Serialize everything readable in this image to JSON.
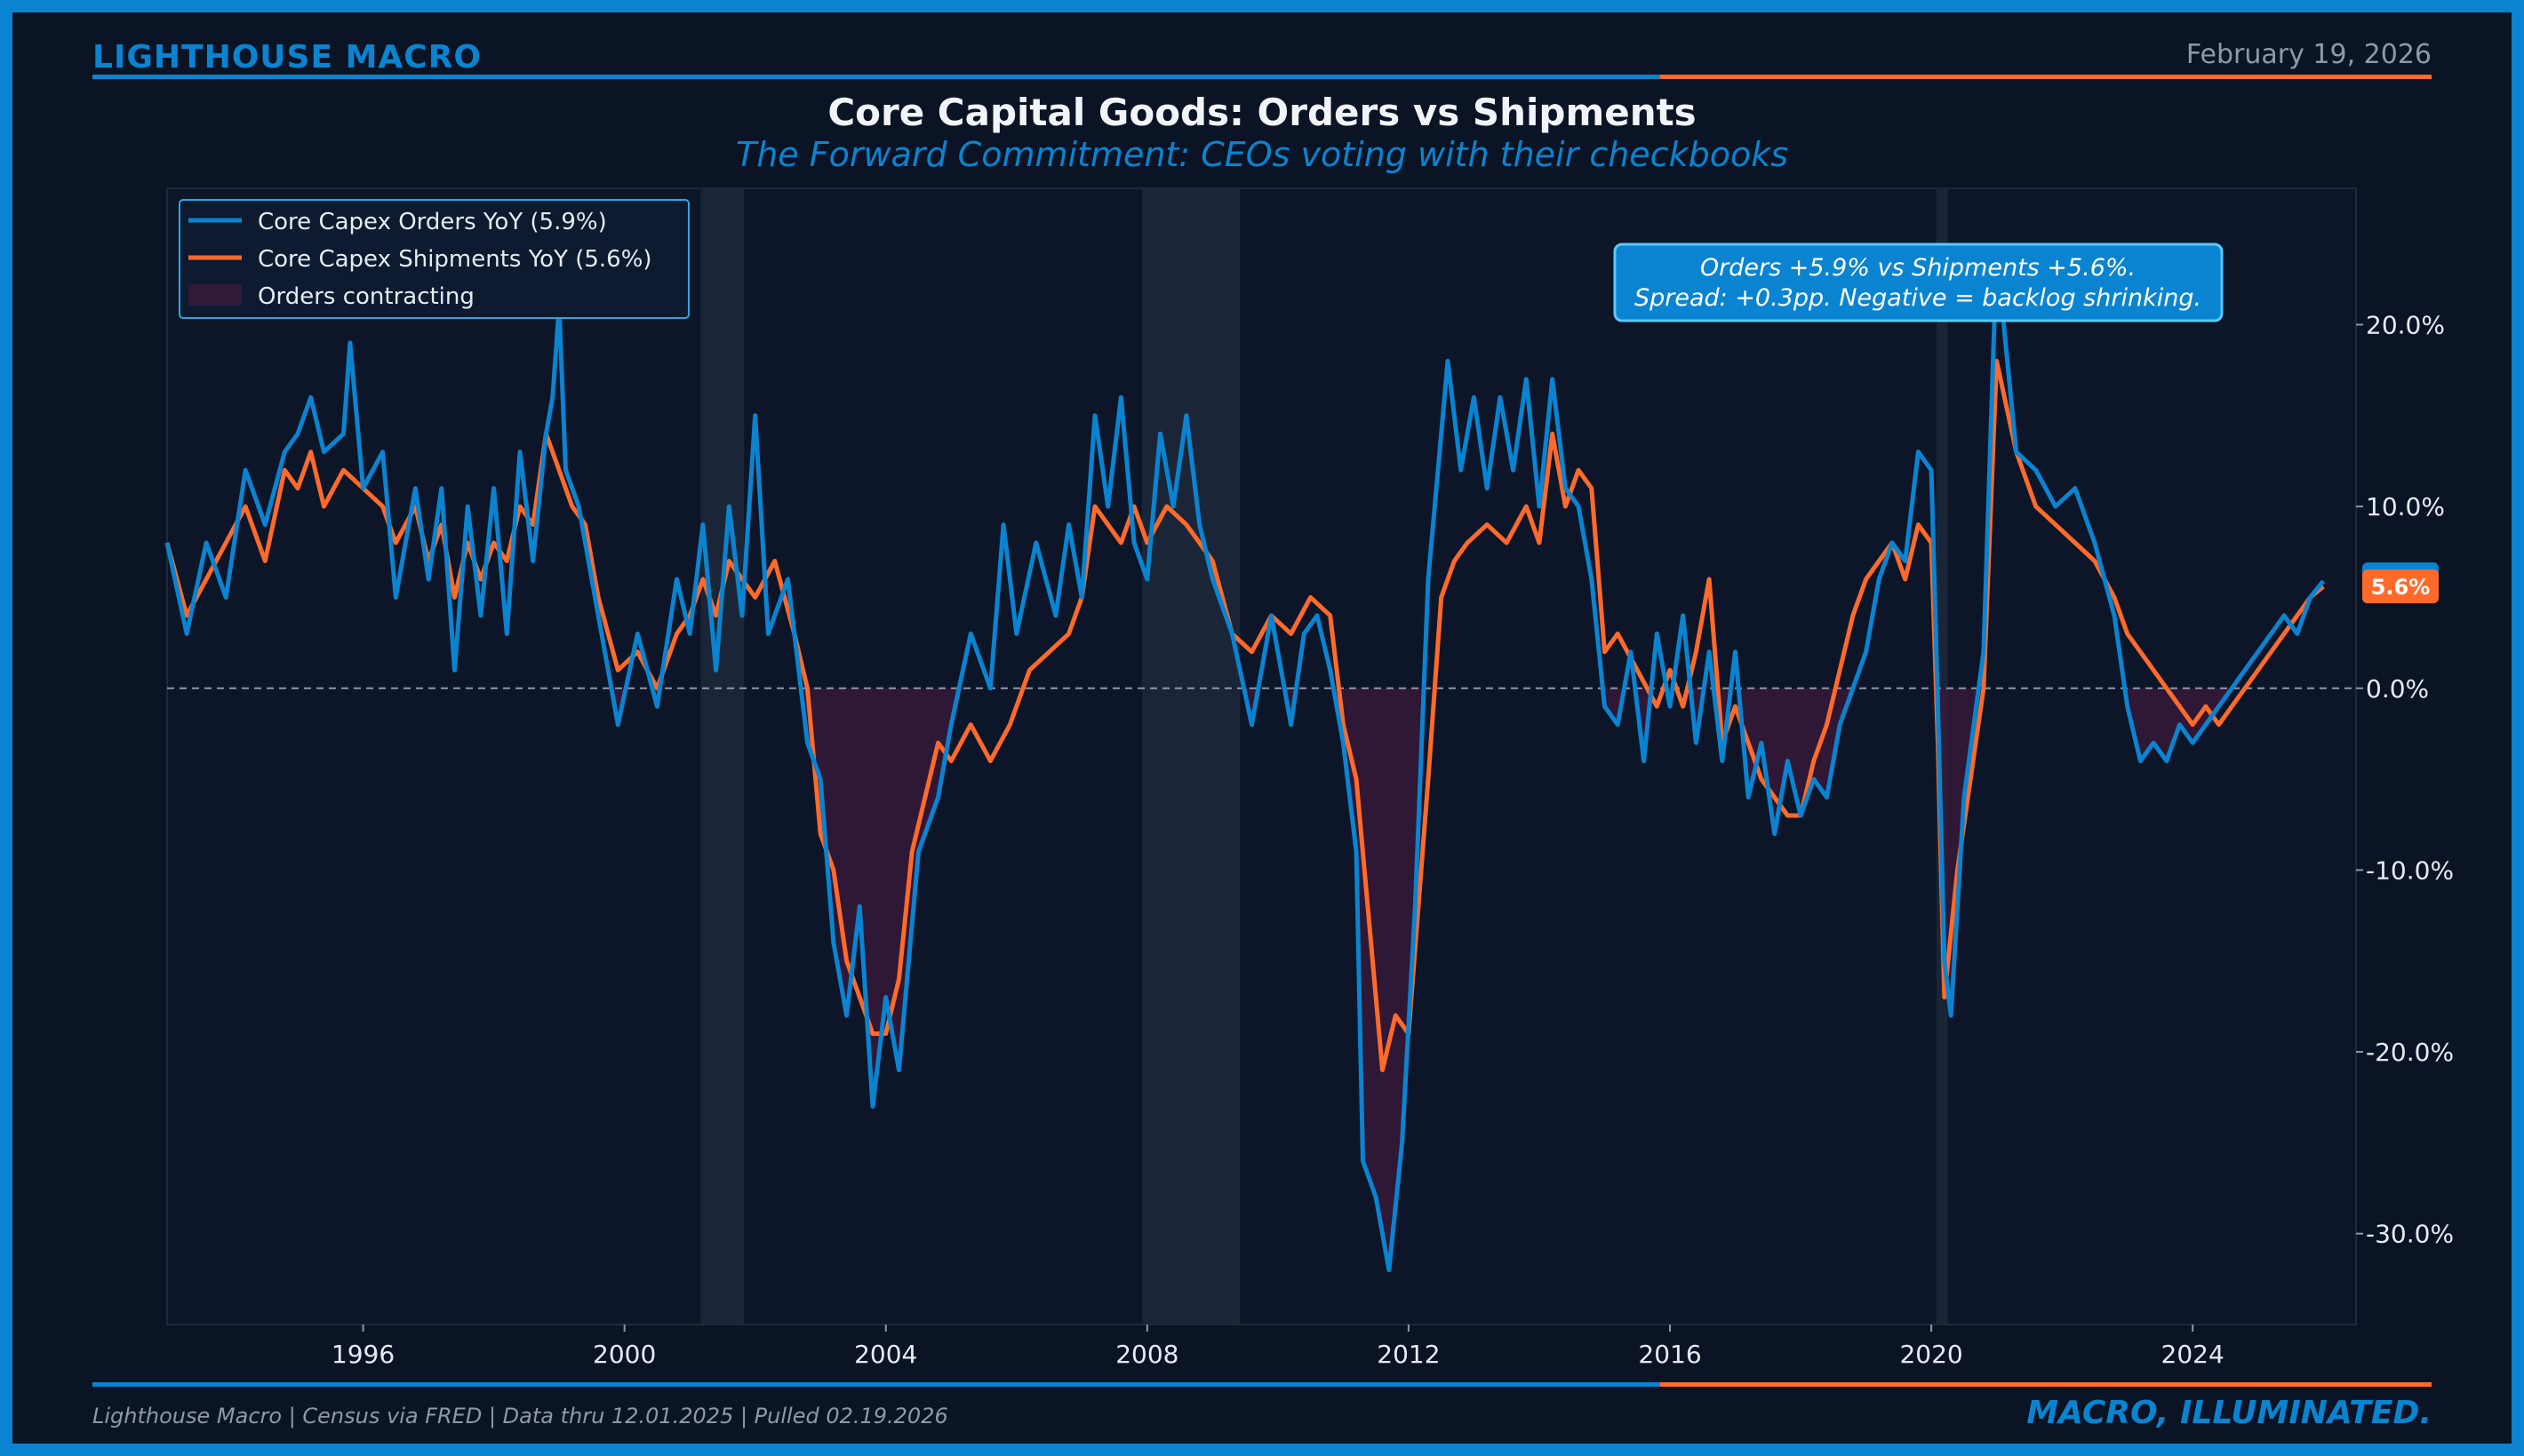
{
  "header": {
    "brand": "LIGHTHOUSE MACRO",
    "date": "February 19, 2026"
  },
  "footer": {
    "source": "Lighthouse Macro | Census via FRED | Data thru 12.01.2025 | Pulled 02.19.2026",
    "tagline": "MACRO, ILLUMINATED."
  },
  "colors": {
    "accent_blue": "#0a84d0",
    "accent_orange": "#ff6a2b",
    "background": "#0b1424",
    "recession_shade": "#1c2838",
    "contraction_fill": "#3a1a3a"
  },
  "chart_data": {
    "type": "line",
    "title": "Core Capital Goods: Orders vs Shipments",
    "subtitle": "The Forward Commitment: CEOs voting with their checkbooks",
    "xlabel": "",
    "ylabel": "",
    "xlim": [
      1993.0,
      2026.5
    ],
    "ylim": [
      -35.0,
      27.5
    ],
    "x_ticks": [
      1996,
      2000,
      2004,
      2008,
      2012,
      2016,
      2020,
      2024
    ],
    "y_ticks": [
      {
        "value": 20,
        "label": "20.0%"
      },
      {
        "value": 10,
        "label": "10.0%"
      },
      {
        "value": 0,
        "label": "0.0%"
      },
      {
        "value": -10,
        "label": "-10.0%"
      },
      {
        "value": -20,
        "label": "-20.0%"
      },
      {
        "value": -30,
        "label": "-30.0%"
      }
    ],
    "zero_line": 0,
    "recessions": [
      [
        2001.17,
        2001.83
      ],
      [
        2007.92,
        2009.42
      ],
      [
        2020.08,
        2020.25
      ]
    ],
    "legend": {
      "position": "top-left",
      "entries": [
        "Core Capex Orders YoY (5.9%)",
        "Core Capex Shipments YoY (5.6%)",
        "Orders contracting"
      ]
    },
    "annotation": {
      "line1": "Orders +5.9% vs Shipments +5.6%.",
      "line2": "Spread: +0.3pp. Negative = backlog shrinking."
    },
    "last_value_label": "5.6%",
    "last_value": 5.6,
    "series": [
      {
        "name": "Core Capex Orders YoY",
        "color": "#0a84d0",
        "points": [
          [
            1993.0,
            8
          ],
          [
            1993.3,
            3
          ],
          [
            1993.6,
            8
          ],
          [
            1993.9,
            5
          ],
          [
            1994.2,
            12
          ],
          [
            1994.5,
            9
          ],
          [
            1994.8,
            13
          ],
          [
            1995.0,
            14
          ],
          [
            1995.2,
            16
          ],
          [
            1995.4,
            13
          ],
          [
            1995.7,
            14
          ],
          [
            1995.8,
            19
          ],
          [
            1996.0,
            11
          ],
          [
            1996.3,
            13
          ],
          [
            1996.5,
            5
          ],
          [
            1996.8,
            11
          ],
          [
            1997.0,
            6
          ],
          [
            1997.2,
            11
          ],
          [
            1997.4,
            1
          ],
          [
            1997.6,
            10
          ],
          [
            1997.8,
            4
          ],
          [
            1998.0,
            11
          ],
          [
            1998.2,
            3
          ],
          [
            1998.4,
            13
          ],
          [
            1998.6,
            7
          ],
          [
            1998.8,
            14
          ],
          [
            1998.9,
            16
          ],
          [
            1999.0,
            21
          ],
          [
            1999.1,
            12
          ],
          [
            1999.3,
            10
          ],
          [
            1999.6,
            4
          ],
          [
            1999.9,
            -2
          ],
          [
            2000.2,
            3
          ],
          [
            2000.5,
            -1
          ],
          [
            2000.8,
            6
          ],
          [
            2001.0,
            3
          ],
          [
            2001.2,
            9
          ],
          [
            2001.4,
            1
          ],
          [
            2001.6,
            10
          ],
          [
            2001.8,
            4
          ],
          [
            2002.0,
            15
          ],
          [
            2002.2,
            3
          ],
          [
            2002.5,
            6
          ],
          [
            2002.8,
            -3
          ],
          [
            2003.0,
            -5
          ],
          [
            2003.2,
            -14
          ],
          [
            2003.4,
            -18
          ],
          [
            2003.6,
            -12
          ],
          [
            2003.8,
            -23
          ],
          [
            2004.0,
            -17
          ],
          [
            2004.2,
            -21
          ],
          [
            2004.5,
            -9
          ],
          [
            2004.8,
            -6
          ],
          [
            2005.0,
            -2
          ],
          [
            2005.3,
            3
          ],
          [
            2005.6,
            0
          ],
          [
            2005.8,
            9
          ],
          [
            2006.0,
            3
          ],
          [
            2006.3,
            8
          ],
          [
            2006.6,
            4
          ],
          [
            2006.8,
            9
          ],
          [
            2007.0,
            5
          ],
          [
            2007.2,
            15
          ],
          [
            2007.4,
            10
          ],
          [
            2007.6,
            16
          ],
          [
            2007.8,
            8
          ],
          [
            2008.0,
            6
          ],
          [
            2008.2,
            14
          ],
          [
            2008.4,
            10
          ],
          [
            2008.6,
            15
          ],
          [
            2008.8,
            9
          ],
          [
            2009.0,
            6
          ],
          [
            2009.3,
            3
          ],
          [
            2009.6,
            -2
          ],
          [
            2009.9,
            4
          ],
          [
            2010.2,
            -2
          ],
          [
            2010.4,
            3
          ],
          [
            2010.6,
            4
          ],
          [
            2010.8,
            1
          ],
          [
            2011.0,
            -3
          ],
          [
            2011.2,
            -9
          ],
          [
            2011.3,
            -26
          ],
          [
            2011.5,
            -28
          ],
          [
            2011.7,
            -32
          ],
          [
            2011.9,
            -25
          ],
          [
            2012.1,
            -12
          ],
          [
            2012.3,
            6
          ],
          [
            2012.5,
            14
          ],
          [
            2012.6,
            18
          ],
          [
            2012.8,
            12
          ],
          [
            2013.0,
            16
          ],
          [
            2013.2,
            11
          ],
          [
            2013.4,
            16
          ],
          [
            2013.6,
            12
          ],
          [
            2013.8,
            17
          ],
          [
            2014.0,
            10
          ],
          [
            2014.2,
            17
          ],
          [
            2014.4,
            11
          ],
          [
            2014.6,
            10
          ],
          [
            2014.8,
            6
          ],
          [
            2015.0,
            -1
          ],
          [
            2015.2,
            -2
          ],
          [
            2015.4,
            2
          ],
          [
            2015.6,
            -4
          ],
          [
            2015.8,
            3
          ],
          [
            2016.0,
            -1
          ],
          [
            2016.2,
            4
          ],
          [
            2016.4,
            -3
          ],
          [
            2016.6,
            2
          ],
          [
            2016.8,
            -4
          ],
          [
            2017.0,
            2
          ],
          [
            2017.2,
            -6
          ],
          [
            2017.4,
            -3
          ],
          [
            2017.6,
            -8
          ],
          [
            2017.8,
            -4
          ],
          [
            2018.0,
            -7
          ],
          [
            2018.2,
            -5
          ],
          [
            2018.4,
            -6
          ],
          [
            2018.6,
            -2
          ],
          [
            2018.8,
            0
          ],
          [
            2019.0,
            2
          ],
          [
            2019.2,
            6
          ],
          [
            2019.4,
            8
          ],
          [
            2019.6,
            7
          ],
          [
            2019.8,
            13
          ],
          [
            2020.0,
            12
          ],
          [
            2020.1,
            -1
          ],
          [
            2020.2,
            -15
          ],
          [
            2020.3,
            -18
          ],
          [
            2020.5,
            -6
          ],
          [
            2020.8,
            2
          ],
          [
            2021.0,
            24
          ],
          [
            2021.3,
            13
          ],
          [
            2021.6,
            12
          ],
          [
            2021.9,
            10
          ],
          [
            2022.2,
            11
          ],
          [
            2022.5,
            8
          ],
          [
            2022.8,
            4
          ],
          [
            2023.0,
            -1
          ],
          [
            2023.2,
            -4
          ],
          [
            2023.4,
            -3
          ],
          [
            2023.6,
            -4
          ],
          [
            2023.8,
            -2
          ],
          [
            2024.0,
            -3
          ],
          [
            2024.2,
            -2
          ],
          [
            2024.4,
            -1
          ],
          [
            2024.6,
            0
          ],
          [
            2024.8,
            1
          ],
          [
            2025.0,
            2
          ],
          [
            2025.2,
            3
          ],
          [
            2025.4,
            4
          ],
          [
            2025.6,
            3
          ],
          [
            2025.8,
            5
          ],
          [
            2026.0,
            5.9
          ]
        ]
      },
      {
        "name": "Core Capex Shipments YoY",
        "color": "#ff6a2b",
        "points": [
          [
            1993.0,
            8
          ],
          [
            1993.3,
            4
          ],
          [
            1993.6,
            6
          ],
          [
            1993.9,
            8
          ],
          [
            1994.2,
            10
          ],
          [
            1994.5,
            7
          ],
          [
            1994.8,
            12
          ],
          [
            1995.0,
            11
          ],
          [
            1995.2,
            13
          ],
          [
            1995.4,
            10
          ],
          [
            1995.7,
            12
          ],
          [
            1996.0,
            11
          ],
          [
            1996.3,
            10
          ],
          [
            1996.5,
            8
          ],
          [
            1996.8,
            10
          ],
          [
            1997.0,
            7
          ],
          [
            1997.2,
            9
          ],
          [
            1997.4,
            5
          ],
          [
            1997.6,
            8
          ],
          [
            1997.8,
            6
          ],
          [
            1998.0,
            8
          ],
          [
            1998.2,
            7
          ],
          [
            1998.4,
            10
          ],
          [
            1998.6,
            9
          ],
          [
            1998.8,
            14
          ],
          [
            1999.0,
            12
          ],
          [
            1999.2,
            10
          ],
          [
            1999.4,
            9
          ],
          [
            1999.6,
            5
          ],
          [
            1999.9,
            1
          ],
          [
            2000.2,
            2
          ],
          [
            2000.5,
            0
          ],
          [
            2000.8,
            3
          ],
          [
            2001.0,
            4
          ],
          [
            2001.2,
            6
          ],
          [
            2001.4,
            4
          ],
          [
            2001.6,
            7
          ],
          [
            2001.8,
            6
          ],
          [
            2002.0,
            5
          ],
          [
            2002.3,
            7
          ],
          [
            2002.6,
            3
          ],
          [
            2002.8,
            0
          ],
          [
            2003.0,
            -8
          ],
          [
            2003.2,
            -10
          ],
          [
            2003.4,
            -15
          ],
          [
            2003.6,
            -17
          ],
          [
            2003.8,
            -19
          ],
          [
            2004.0,
            -19
          ],
          [
            2004.2,
            -16
          ],
          [
            2004.4,
            -9
          ],
          [
            2004.6,
            -6
          ],
          [
            2004.8,
            -3
          ],
          [
            2005.0,
            -4
          ],
          [
            2005.3,
            -2
          ],
          [
            2005.6,
            -4
          ],
          [
            2005.9,
            -2
          ],
          [
            2006.2,
            1
          ],
          [
            2006.5,
            2
          ],
          [
            2006.8,
            3
          ],
          [
            2007.0,
            5
          ],
          [
            2007.2,
            10
          ],
          [
            2007.4,
            9
          ],
          [
            2007.6,
            8
          ],
          [
            2007.8,
            10
          ],
          [
            2008.0,
            8
          ],
          [
            2008.3,
            10
          ],
          [
            2008.6,
            9
          ],
          [
            2008.8,
            8
          ],
          [
            2009.0,
            7
          ],
          [
            2009.3,
            3
          ],
          [
            2009.6,
            2
          ],
          [
            2009.9,
            4
          ],
          [
            2010.2,
            3
          ],
          [
            2010.5,
            5
          ],
          [
            2010.8,
            4
          ],
          [
            2011.0,
            -2
          ],
          [
            2011.2,
            -5
          ],
          [
            2011.4,
            -13
          ],
          [
            2011.6,
            -21
          ],
          [
            2011.8,
            -18
          ],
          [
            2012.0,
            -19
          ],
          [
            2012.3,
            -5
          ],
          [
            2012.5,
            5
          ],
          [
            2012.7,
            7
          ],
          [
            2012.9,
            8
          ],
          [
            2013.2,
            9
          ],
          [
            2013.5,
            8
          ],
          [
            2013.8,
            10
          ],
          [
            2014.0,
            8
          ],
          [
            2014.2,
            14
          ],
          [
            2014.4,
            10
          ],
          [
            2014.6,
            12
          ],
          [
            2014.8,
            11
          ],
          [
            2015.0,
            2
          ],
          [
            2015.2,
            3
          ],
          [
            2015.5,
            1
          ],
          [
            2015.8,
            -1
          ],
          [
            2016.0,
            1
          ],
          [
            2016.2,
            -1
          ],
          [
            2016.4,
            2
          ],
          [
            2016.6,
            6
          ],
          [
            2016.8,
            -3
          ],
          [
            2017.0,
            -1
          ],
          [
            2017.2,
            -3
          ],
          [
            2017.4,
            -5
          ],
          [
            2017.6,
            -6
          ],
          [
            2017.8,
            -7
          ],
          [
            2018.0,
            -7
          ],
          [
            2018.2,
            -4
          ],
          [
            2018.4,
            -2
          ],
          [
            2018.6,
            1
          ],
          [
            2018.8,
            4
          ],
          [
            2019.0,
            6
          ],
          [
            2019.2,
            7
          ],
          [
            2019.4,
            8
          ],
          [
            2019.6,
            6
          ],
          [
            2019.8,
            9
          ],
          [
            2020.0,
            8
          ],
          [
            2020.1,
            -3
          ],
          [
            2020.2,
            -17
          ],
          [
            2020.4,
            -10
          ],
          [
            2020.6,
            -5
          ],
          [
            2020.8,
            0
          ],
          [
            2021.0,
            18
          ],
          [
            2021.3,
            13
          ],
          [
            2021.6,
            10
          ],
          [
            2021.9,
            9
          ],
          [
            2022.2,
            8
          ],
          [
            2022.5,
            7
          ],
          [
            2022.8,
            5
          ],
          [
            2023.0,
            3
          ],
          [
            2023.2,
            2
          ],
          [
            2023.4,
            1
          ],
          [
            2023.6,
            0
          ],
          [
            2023.8,
            -1
          ],
          [
            2024.0,
            -2
          ],
          [
            2024.2,
            -1
          ],
          [
            2024.4,
            -2
          ],
          [
            2024.6,
            -1
          ],
          [
            2024.8,
            0
          ],
          [
            2025.0,
            1
          ],
          [
            2025.2,
            2
          ],
          [
            2025.4,
            3
          ],
          [
            2025.6,
            4
          ],
          [
            2025.8,
            5
          ],
          [
            2026.0,
            5.6
          ]
        ]
      }
    ]
  }
}
